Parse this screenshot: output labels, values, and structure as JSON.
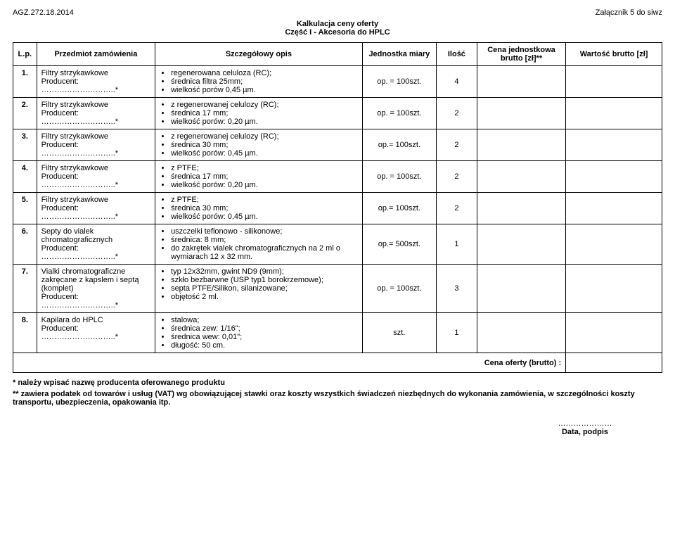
{
  "header": {
    "doc_ref": "AGZ.272.18.2014",
    "attachment": "Załącznik 5 do siwz",
    "title_line1": "Kalkulacja ceny oferty",
    "title_line2": "Część I  - Akcesoria do HPLC"
  },
  "columns": {
    "lp": "L.p.",
    "item": "Przedmiot zamówienia",
    "desc": "Szczegółowy opis",
    "unit": "Jednostka miary",
    "qty": "Ilość",
    "price": "Cena jednostkowa brutto [zł]**",
    "val": "Wartość brutto [zł]"
  },
  "col_widths": {
    "lp": "32px",
    "item": "160px",
    "desc": "280px",
    "unit": "100px",
    "qty": "55px",
    "price": "120px",
    "val": "130px"
  },
  "common": {
    "producer_label": "Producent:",
    "dots": "………………………..*"
  },
  "rows": [
    {
      "num": "1.",
      "item_name": "Filtry strzykawkowe",
      "bullets": [
        "regenerowana celuloza (RC);",
        "średnica filtra 25mm;",
        "wielkość porów 0,45 µm."
      ],
      "unit": "op. = 100szt.",
      "qty": "4"
    },
    {
      "num": "2.",
      "item_name": "Filtry strzykawkowe",
      "bullets": [
        "z regenerowanej celulozy (RC);",
        "średnica 17 mm;",
        "wielkość porów: 0,20 µm."
      ],
      "unit": "op. = 100szt.",
      "qty": "2"
    },
    {
      "num": "3.",
      "item_name": "Filtry strzykawkowe",
      "bullets": [
        "z regenerowanej celulozy (RC);",
        "średnica 30 mm;",
        "wielkość porów: 0,45 µm."
      ],
      "unit": "op.= 100szt.",
      "qty": "2"
    },
    {
      "num": "4.",
      "item_name": "Filtry strzykawkowe",
      "bullets": [
        "z PTFE;",
        "średnica 17 mm;",
        "wielkość porów: 0,20 µm."
      ],
      "unit": "op. = 100szt.",
      "qty": "2"
    },
    {
      "num": "5.",
      "item_name": "Filtry strzykawkowe",
      "bullets": [
        "z PTFE;",
        "średnica 30 mm;",
        "wielkość porów: 0,45 µm."
      ],
      "unit": "op.= 100szt.",
      "qty": "2"
    },
    {
      "num": "6.",
      "item_name": "Septy do vialek chromatograficznych",
      "bullets": [
        "uszczelki teflonowo - silikonowe;",
        "średnica: 8 mm;",
        "do zakrętek vialek chromatograficznych na 2 ml o wymiarach 12 x 32 mm."
      ],
      "unit": "op.= 500szt.",
      "qty": "1"
    },
    {
      "num": "7.",
      "item_name": "Vialki chromatograficzne zakręcane z kapslem i septą (komplet)",
      "bullets": [
        "typ 12x32mm, gwint ND9 (9mm);",
        "szkło bezbarwne (USP typ1 borokrzemowe);",
        "septa PTFE/Silikon, silanizowane;",
        "objętość 2 ml."
      ],
      "unit": "op. = 100szt.",
      "qty": "3"
    },
    {
      "num": "8.",
      "item_name": "Kapilara do HPLC",
      "bullets": [
        "stalowa;",
        "średnica zew: 1/16\";",
        "średnica wew: 0,01\";",
        "długość: 50 cm."
      ],
      "unit": "szt.",
      "qty": "1"
    }
  ],
  "footer": {
    "total_label": "Cena oferty (brutto) :",
    "note1": "* należy wpisać nazwę producenta oferowanego produktu",
    "note2": "** zawiera podatek od towarów i usług (VAT) wg obowiązującej stawki oraz koszty wszystkich świadczeń niezbędnych do wykonania zamówienia, w szczególności koszty transportu, ubezpieczenia, opakowania itp.",
    "sign_dots": "…………………",
    "sign_label": "Data, podpis"
  }
}
